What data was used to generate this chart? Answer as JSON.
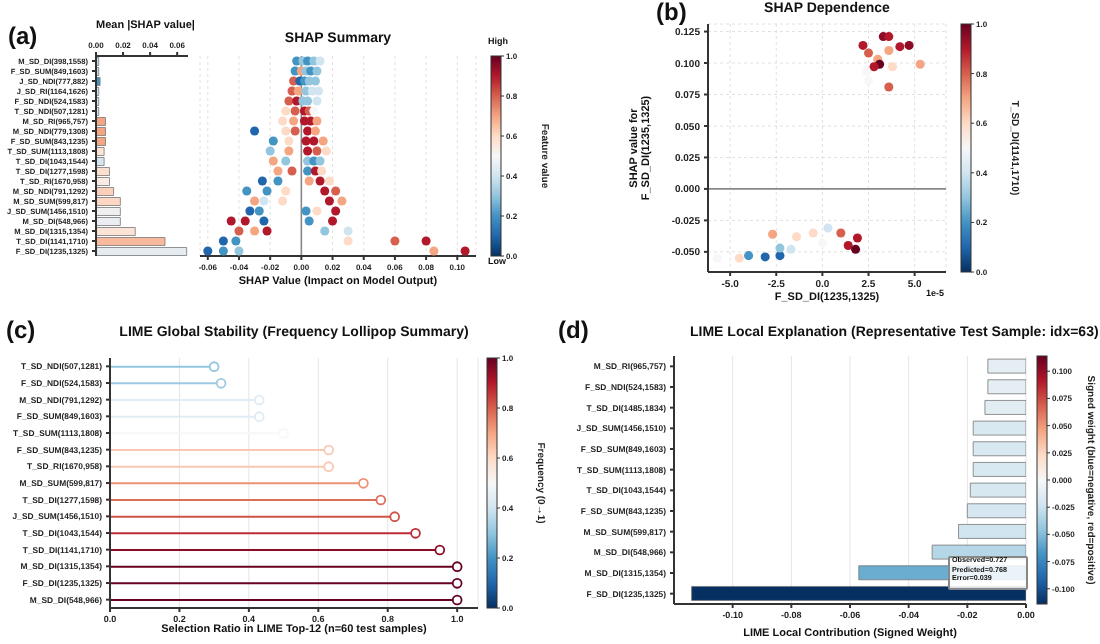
{
  "chart_data": [
    {
      "type": "bar",
      "orientation": "horizontal",
      "xlabel": "Mean |SHAP value|",
      "annotations": [
        "(a)"
      ],
      "categories": [
        "M_SD_DI(398,1558)",
        "F_SD_SUM(849,1603)",
        "J_SD_NDI(777,882)",
        "J_SD_RI(1164,1626)",
        "F_SD_NDI(524,1583)",
        "T_SD_NDI(507,1281)",
        "M_SD_RI(965,757)",
        "M_SD_NDI(779,1308)",
        "F_SD_SUM(843,1235)",
        "T_SD_SUM(1113,1808)",
        "T_SD_DI(1043,1544)",
        "T_SD_DI(1277,1598)",
        "T_SD_RI(1670,958)",
        "M_SD_NDI(791,1292)",
        "M_SD_SUM(599,817)",
        "J_SD_SUM(1456,1510)",
        "M_SD_DI(548,966)",
        "M_SD_DI(1315,1354)",
        "T_SD_DI(1141,1710)",
        "F_SD_DI(1235,1325)"
      ],
      "values": [
        0.002,
        0.002,
        0.003,
        0.002,
        0.002,
        0.002,
        0.007,
        0.007,
        0.007,
        0.006,
        0.006,
        0.01,
        0.01,
        0.013,
        0.018,
        0.018,
        0.018,
        0.029,
        0.051,
        0.067
      ],
      "colors": [
        "#c6dbea",
        "#c6dbea",
        "#4393c3",
        "#d6e6f0",
        "#d6e6f0",
        "#d6e6f0",
        "#f4a582",
        "#f4a582",
        "#f4a582",
        "#fbe3d6",
        "#d6e6f0",
        "#fbe0d0",
        "#f7ebe4",
        "#fbd0bb",
        "#fbd7c4",
        "#f0f0f0",
        "#eaeef2",
        "#fbe3d5",
        "#f9b99c",
        "#e4ecf2"
      ],
      "xlim": [
        0,
        0.068
      ],
      "xticks": [
        {
          "value": 0,
          "label": "0.00"
        },
        {
          "value": 0.02,
          "label": "0.02"
        },
        {
          "value": 0.04,
          "label": "0.04"
        },
        {
          "value": 0.06,
          "label": "0.06"
        }
      ]
    },
    {
      "type": "scatter",
      "orientation": "horizontal",
      "title": "SHAP Summary",
      "xlabel": "SHAP Value (Impact on Model Output)",
      "clabel": "Feature value",
      "annotations": [
        "Low",
        "High"
      ],
      "tick_labels": "x",
      "grid": "x",
      "marker": "circle",
      "categories": [
        "M_SD_DI(398,1558)",
        "F_SD_SUM(849,1603)",
        "J_SD_NDI(777,882)",
        "J_SD_RI(1164,1626)",
        "F_SD_NDI(524,1583)",
        "T_SD_NDI(507,1281)",
        "M_SD_RI(965,757)",
        "M_SD_NDI(779,1308)",
        "F_SD_SUM(843,1235)",
        "T_SD_SUM(1113,1808)",
        "T_SD_DI(1043,1544)",
        "T_SD_DI(1277,1598)",
        "T_SD_RI(1670,958)",
        "M_SD_NDI(791,1292)",
        "M_SD_SUM(599,817)",
        "J_SD_SUM(1456,1510)",
        "M_SD_DI(548,966)",
        "M_SD_DI(1315,1354)",
        "T_SD_DI(1141,1710)",
        "F_SD_DI(1235,1325)"
      ],
      "series": [
        {
          "x": [
            "M_SD_DI(398,1558)",
            "M_SD_DI(398,1558)",
            "M_SD_DI(398,1558)",
            "M_SD_DI(398,1558)",
            "M_SD_DI(398,1558)",
            "F_SD_SUM(849,1603)",
            "F_SD_SUM(849,1603)",
            "F_SD_SUM(849,1603)",
            "F_SD_SUM(849,1603)",
            "F_SD_SUM(849,1603)",
            "J_SD_NDI(777,882)",
            "J_SD_NDI(777,882)",
            "J_SD_NDI(777,882)",
            "J_SD_NDI(777,882)",
            "J_SD_NDI(777,882)",
            "J_SD_RI(1164,1626)",
            "J_SD_RI(1164,1626)",
            "J_SD_RI(1164,1626)",
            "J_SD_RI(1164,1626)",
            "J_SD_RI(1164,1626)",
            "F_SD_NDI(524,1583)",
            "F_SD_NDI(524,1583)",
            "F_SD_NDI(524,1583)",
            "F_SD_NDI(524,1583)",
            "F_SD_NDI(524,1583)",
            "T_SD_NDI(507,1281)",
            "T_SD_NDI(507,1281)",
            "T_SD_NDI(507,1281)",
            "T_SD_NDI(507,1281)",
            "T_SD_NDI(507,1281)",
            "M_SD_RI(965,757)",
            "M_SD_RI(965,757)",
            "M_SD_RI(965,757)",
            "M_SD_RI(965,757)",
            "M_SD_RI(965,757)",
            "M_SD_NDI(779,1308)",
            "M_SD_NDI(779,1308)",
            "M_SD_NDI(779,1308)",
            "M_SD_NDI(779,1308)",
            "M_SD_NDI(779,1308)",
            "F_SD_SUM(843,1235)",
            "F_SD_SUM(843,1235)",
            "F_SD_SUM(843,1235)",
            "F_SD_SUM(843,1235)",
            "F_SD_SUM(843,1235)",
            "T_SD_SUM(1113,1808)",
            "T_SD_SUM(1113,1808)",
            "T_SD_SUM(1113,1808)",
            "T_SD_SUM(1113,1808)",
            "T_SD_SUM(1113,1808)",
            "T_SD_DI(1043,1544)",
            "T_SD_DI(1043,1544)",
            "T_SD_DI(1043,1544)",
            "T_SD_DI(1043,1544)",
            "T_SD_DI(1043,1544)",
            "T_SD_DI(1277,1598)",
            "T_SD_DI(1277,1598)",
            "T_SD_DI(1277,1598)",
            "T_SD_DI(1277,1598)",
            "T_SD_DI(1277,1598)",
            "T_SD_RI(1670,958)",
            "T_SD_RI(1670,958)",
            "T_SD_RI(1670,958)",
            "T_SD_RI(1670,958)",
            "T_SD_RI(1670,958)",
            "M_SD_NDI(791,1292)",
            "M_SD_NDI(791,1292)",
            "M_SD_NDI(791,1292)",
            "M_SD_NDI(791,1292)",
            "M_SD_NDI(791,1292)",
            "M_SD_SUM(599,817)",
            "M_SD_SUM(599,817)",
            "M_SD_SUM(599,817)",
            "M_SD_SUM(599,817)",
            "M_SD_SUM(599,817)",
            "J_SD_SUM(1456,1510)",
            "J_SD_SUM(1456,1510)",
            "J_SD_SUM(1456,1510)",
            "J_SD_SUM(1456,1510)",
            "J_SD_SUM(1456,1510)",
            "M_SD_DI(548,966)",
            "M_SD_DI(548,966)",
            "M_SD_DI(548,966)",
            "M_SD_DI(548,966)",
            "M_SD_DI(548,966)",
            "M_SD_DI(1315,1354)",
            "M_SD_DI(1315,1354)",
            "M_SD_DI(1315,1354)",
            "M_SD_DI(1315,1354)",
            "M_SD_DI(1315,1354)",
            "T_SD_DI(1141,1710)",
            "T_SD_DI(1141,1710)",
            "T_SD_DI(1141,1710)",
            "T_SD_DI(1141,1710)",
            "T_SD_DI(1141,1710)",
            "F_SD_DI(1235,1325)",
            "F_SD_DI(1235,1325)",
            "F_SD_DI(1235,1325)",
            "F_SD_DI(1235,1325)",
            "F_SD_DI(1235,1325)"
          ],
          "values": [
            -0.003,
            0.001,
            0.004,
            0.008,
            0.012,
            -0.004,
            0.0,
            0.003,
            0.006,
            0.01,
            -0.005,
            -0.001,
            0.002,
            0.005,
            0.009,
            -0.006,
            -0.002,
            0.003,
            0.007,
            0.011,
            -0.008,
            -0.003,
            0.001,
            0.004,
            0.01,
            -0.01,
            -0.004,
            0.002,
            0.005,
            0.008,
            -0.012,
            -0.005,
            0.002,
            0.006,
            0.01,
            -0.03,
            -0.01,
            -0.004,
            0.004,
            0.009,
            -0.018,
            -0.008,
            0.003,
            0.008,
            0.014,
            -0.02,
            -0.008,
            0.004,
            0.01,
            0.016,
            -0.018,
            -0.01,
            0.004,
            0.008,
            0.012,
            -0.015,
            -0.006,
            0.004,
            0.009,
            0.013,
            -0.025,
            -0.015,
            0.005,
            0.012,
            0.018,
            -0.035,
            -0.022,
            -0.01,
            0.015,
            0.022,
            -0.03,
            -0.024,
            -0.012,
            0.018,
            0.026,
            -0.033,
            -0.027,
            0.003,
            0.01,
            0.022,
            -0.045,
            -0.036,
            -0.024,
            0.005,
            0.02,
            -0.04,
            -0.03,
            -0.022,
            0.015,
            0.03,
            -0.05,
            -0.042,
            0.03,
            0.06,
            0.08,
            -0.06,
            -0.05,
            -0.04,
            0.085,
            0.105
          ],
          "cvalues": [
            0.2,
            0.3,
            0.2,
            0.3,
            0.4,
            0.2,
            0.7,
            0.3,
            0.2,
            0.3,
            0.8,
            0.1,
            0.2,
            0.3,
            0.3,
            0.8,
            0.7,
            0.3,
            0.4,
            0.4,
            0.8,
            0.9,
            0.3,
            0.3,
            0.4,
            0.6,
            0.8,
            0.9,
            0.8,
            0.5,
            0.6,
            0.7,
            0.9,
            0.9,
            0.7,
            0.1,
            0.6,
            0.8,
            0.9,
            0.7,
            0.2,
            0.6,
            0.9,
            0.9,
            0.7,
            0.3,
            0.7,
            0.9,
            0.8,
            0.6,
            0.7,
            0.3,
            0.3,
            0.2,
            0.3,
            0.7,
            0.8,
            0.2,
            0.9,
            0.6,
            0.1,
            0.2,
            0.7,
            0.9,
            0.6,
            0.2,
            0.2,
            0.6,
            0.9,
            0.8,
            0.7,
            0.4,
            0.6,
            0.9,
            0.7,
            0.1,
            0.2,
            0.2,
            0.6,
            0.9,
            0.9,
            0.9,
            0.1,
            0.2,
            0.9,
            0.8,
            0.7,
            0.9,
            0.3,
            0.4,
            0.1,
            0.2,
            0.6,
            0.8,
            0.9,
            0.1,
            0.2,
            0.3,
            0.7,
            0.9
          ]
        }
      ],
      "xlim": [
        -0.065,
        0.112
      ],
      "xticks": [
        {
          "value": -0.06,
          "label": "-0.06"
        },
        {
          "value": -0.04,
          "label": "-0.04"
        },
        {
          "value": -0.02,
          "label": "-0.02"
        },
        {
          "value": 0,
          "label": "0.00"
        },
        {
          "value": 0.02,
          "label": "0.02"
        },
        {
          "value": 0.04,
          "label": "0.04"
        },
        {
          "value": 0.06,
          "label": "0.06"
        },
        {
          "value": 0.08,
          "label": "0.08"
        },
        {
          "value": 0.1,
          "label": "0.10"
        }
      ],
      "ref_lines": [
        {
          "axis": "x",
          "value": 0,
          "color": "#888888"
        }
      ],
      "clim": [
        0,
        1
      ],
      "cticks": [
        {
          "value": 0,
          "label": "0.0"
        },
        {
          "value": 0.2,
          "label": "0.2"
        },
        {
          "value": 0.4,
          "label": "0.4"
        },
        {
          "value": 0.6,
          "label": "0.6"
        },
        {
          "value": 0.8,
          "label": "0.8"
        },
        {
          "value": 1,
          "label": "1.0"
        }
      ]
    },
    {
      "type": "scatter",
      "title": "SHAP Dependence",
      "xlabel": "F_SD_DI(1235,1325)",
      "ylabel": "SHAP value for\nF_SD_DI(1235,1325)",
      "clabel": "T_SD_DI(1141,1710)",
      "annotations": [
        "(b)",
        "1e-5"
      ],
      "grid": true,
      "marker": "circle",
      "series": [
        {
          "x": [
            2.2,
            2.5,
            3.0,
            3.3,
            3.6,
            3.6,
            4.2,
            4.7,
            5.3,
            3.1,
            2.8,
            2.4,
            2.5,
            3.6,
            3.8,
            -4.5,
            -4.0,
            -3.1,
            -2.3,
            -2.3,
            -2.7,
            -1.4,
            -0.5,
            0.3,
            1.0,
            1.9,
            1.4,
            1.8,
            0.0,
            -1.7,
            -5.7
          ],
          "values": [
            0.114,
            0.108,
            0.103,
            0.121,
            0.121,
            0.11,
            0.113,
            0.114,
            0.099,
            0.099,
            0.097,
            0.093,
            0.086,
            0.081,
            0.097,
            -0.055,
            -0.053,
            -0.054,
            -0.053,
            -0.047,
            -0.036,
            -0.038,
            -0.035,
            -0.031,
            -0.035,
            -0.039,
            -0.045,
            -0.048,
            -0.043,
            -0.048,
            -0.055
          ],
          "cvalues": [
            0.9,
            0.8,
            0.7,
            0.95,
            0.9,
            0.7,
            0.9,
            0.95,
            0.7,
            1.0,
            0.9,
            0.5,
            0.5,
            0.8,
            0.6,
            0.6,
            0.2,
            0.1,
            0.1,
            0.3,
            0.7,
            0.6,
            0.6,
            0.4,
            0.8,
            0.9,
            0.9,
            1.0,
            0.5,
            0.4,
            0.5
          ]
        }
      ],
      "xlim": [
        -6.2,
        6.7
      ],
      "xticks": [
        {
          "value": -5,
          "label": "-5.0"
        },
        {
          "value": -2.5,
          "label": "-2.5"
        },
        {
          "value": 0,
          "label": "0.0"
        },
        {
          "value": 2.5,
          "label": "2.5"
        },
        {
          "value": 5,
          "label": "5.0"
        }
      ],
      "ylim": [
        -0.066,
        0.131
      ],
      "yticks": [
        {
          "value": -0.05,
          "label": "-0.050"
        },
        {
          "value": -0.025,
          "label": "-0.025"
        },
        {
          "value": 0,
          "label": "0.000"
        },
        {
          "value": 0.025,
          "label": "0.025"
        },
        {
          "value": 0.05,
          "label": "0.050"
        },
        {
          "value": 0.075,
          "label": "0.075"
        },
        {
          "value": 0.1,
          "label": "0.100"
        },
        {
          "value": 0.125,
          "label": "0.125"
        }
      ],
      "ref_lines": [
        {
          "axis": "y",
          "value": 0,
          "color": "#888888"
        }
      ],
      "clim": [
        0,
        1
      ],
      "cticks": [
        {
          "value": 0,
          "label": "0.0"
        },
        {
          "value": 0.2,
          "label": "0.2"
        },
        {
          "value": 0.4,
          "label": "0.4"
        },
        {
          "value": 0.6,
          "label": "0.6"
        },
        {
          "value": 0.8,
          "label": "0.8"
        },
        {
          "value": 1,
          "label": "1.0"
        }
      ]
    },
    {
      "type": "lollipop",
      "orientation": "horizontal",
      "title": "LIME Global Stability (Frequency Lollipop Summary)",
      "xlabel": "Selection Ratio in LIME Top-12 (n=60 test samples)",
      "clabel": "Frequency (0→1)",
      "annotations": [
        "(c)"
      ],
      "grid": "x",
      "marker": "circle",
      "categories": [
        "T_SD_NDI(507,1281)",
        "F_SD_NDI(524,1583)",
        "M_SD_NDI(791,1292)",
        "F_SD_SUM(849,1603)",
        "T_SD_SUM(1113,1808)",
        "F_SD_SUM(843,1235)",
        "T_SD_RI(1670,958)",
        "M_SD_SUM(599,817)",
        "T_SD_DI(1277,1598)",
        "J_SD_SUM(1456,1510)",
        "T_SD_DI(1043,1544)",
        "T_SD_DI(1141,1710)",
        "M_SD_DI(1315,1354)",
        "F_SD_DI(1235,1325)",
        "M_SD_DI(548,966)"
      ],
      "values": [
        0.3,
        0.32,
        0.43,
        0.43,
        0.5,
        0.63,
        0.63,
        0.73,
        0.78,
        0.82,
        0.88,
        0.95,
        1.0,
        1.0,
        1.0
      ],
      "colors": [
        "#92c5de",
        "#9dcae1",
        "#dfecf3",
        "#dfecf3",
        "#f7f7f7",
        "#fac8b0",
        "#fac8b0",
        "#ec9274",
        "#dd6f58",
        "#d15347",
        "#bb2d34",
        "#8d0c25",
        "#67001f",
        "#67001f",
        "#67001f"
      ],
      "xlim": [
        0,
        1.06
      ],
      "xticks": [
        {
          "value": 0,
          "label": "0.0"
        },
        {
          "value": 0.2,
          "label": "0.2"
        },
        {
          "value": 0.4,
          "label": "0.4"
        },
        {
          "value": 0.6,
          "label": "0.6"
        },
        {
          "value": 0.8,
          "label": "0.8"
        },
        {
          "value": 1,
          "label": "1.0"
        }
      ],
      "clim": [
        0,
        1
      ],
      "cticks": [
        {
          "value": 0,
          "label": "0.0"
        },
        {
          "value": 0.2,
          "label": "0.2"
        },
        {
          "value": 0.4,
          "label": "0.4"
        },
        {
          "value": 0.6,
          "label": "0.6"
        },
        {
          "value": 0.8,
          "label": "0.8"
        },
        {
          "value": 1,
          "label": "1.0"
        }
      ]
    },
    {
      "type": "bar",
      "orientation": "horizontal",
      "title": "LIME Local Explanation (Representative Test Sample: idx=63)",
      "xlabel": "LIME Local Contribution (Signed Weight)",
      "clabel": "Signed weight (blue=negative, red=positive)",
      "annotations": [
        "(d)",
        "Observed=0.727",
        "Predicted=0.768",
        "Error=0.039"
      ],
      "grid": "x",
      "categories": [
        "M_SD_RI(965,757)",
        "F_SD_NDI(524,1583)",
        "T_SD_DI(1485,1834)",
        "J_SD_SUM(1456,1510)",
        "F_SD_SUM(849,1603)",
        "T_SD_SUM(1113,1808)",
        "T_SD_DI(1043,1544)",
        "F_SD_SUM(843,1235)",
        "M_SD_SUM(599,817)",
        "M_SD_DI(548,966)",
        "M_SD_DI(1315,1354)",
        "F_SD_DI(1235,1325)"
      ],
      "values": [
        -0.013,
        -0.013,
        -0.014,
        -0.018,
        -0.018,
        -0.018,
        -0.019,
        -0.02,
        -0.023,
        -0.032,
        -0.057,
        -0.114
      ],
      "colors": [
        "#e5eef3",
        "#e5eef3",
        "#e2edf3",
        "#d9e9f1",
        "#d9e9f1",
        "#d9e9f1",
        "#d8e8f1",
        "#d6e7f1",
        "#d1e5f0",
        "#b6d7e8",
        "#6aadd1",
        "#053061"
      ],
      "xlim": [
        -0.12,
        0
      ],
      "xticks": [
        {
          "value": -0.1,
          "label": "-0.10"
        },
        {
          "value": -0.08,
          "label": "-0.08"
        },
        {
          "value": -0.06,
          "label": "-0.06"
        },
        {
          "value": -0.04,
          "label": "-0.04"
        },
        {
          "value": -0.02,
          "label": "-0.02"
        },
        {
          "value": 0,
          "label": "0.00"
        }
      ],
      "clim": [
        -0.114,
        0.114
      ],
      "cticks": [
        {
          "value": -0.1,
          "label": "-0.100"
        },
        {
          "value": -0.075,
          "label": "-0.075"
        },
        {
          "value": -0.05,
          "label": "-0.050"
        },
        {
          "value": -0.025,
          "label": "-0.025"
        },
        {
          "value": 0,
          "label": "0.000"
        },
        {
          "value": 0.025,
          "label": "0.025"
        },
        {
          "value": 0.05,
          "label": "0.050"
        },
        {
          "value": 0.075,
          "label": "0.075"
        },
        {
          "value": 0.1,
          "label": "0.100"
        }
      ]
    }
  ]
}
